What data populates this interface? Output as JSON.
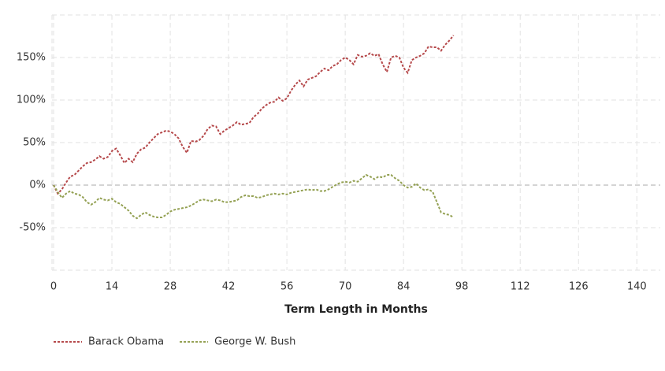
{
  "chart_data": {
    "type": "line",
    "x_label": "Term Length in Months",
    "x": [
      0,
      1,
      2,
      3,
      4,
      5,
      6,
      7,
      8,
      9,
      10,
      11,
      12,
      13,
      14,
      15,
      16,
      17,
      18,
      19,
      20,
      21,
      22,
      23,
      24,
      25,
      26,
      27,
      28,
      29,
      30,
      31,
      32,
      33,
      34,
      35,
      36,
      37,
      38,
      39,
      40,
      41,
      42,
      43,
      44,
      45,
      46,
      47,
      48,
      49,
      50,
      51,
      52,
      53,
      54,
      55,
      56,
      57,
      58,
      59,
      60,
      61,
      62,
      63,
      64,
      65,
      66,
      67,
      68,
      69,
      70,
      71,
      72,
      73,
      74,
      75,
      76,
      77,
      78,
      79,
      80,
      81,
      82,
      83,
      84,
      85,
      86,
      87,
      88,
      89,
      90,
      91,
      92,
      93,
      94,
      95,
      96
    ],
    "series": [
      {
        "name": "Barack Obama",
        "color": "#b5484a",
        "values": [
          0,
          -10,
          -5,
          3,
          10,
          12,
          17,
          22,
          26,
          27,
          30,
          34,
          31,
          33,
          40,
          43,
          35,
          26,
          31,
          27,
          37,
          42,
          44,
          50,
          55,
          60,
          62,
          64,
          63,
          60,
          55,
          45,
          38,
          52,
          51,
          53,
          58,
          66,
          70,
          69,
          60,
          64,
          67,
          70,
          74,
          71,
          72,
          73,
          80,
          84,
          90,
          94,
          97,
          98,
          103,
          99,
          102,
          111,
          118,
          123,
          116,
          124,
          126,
          128,
          133,
          137,
          135,
          140,
          142,
          147,
          150,
          147,
          142,
          153,
          151,
          152,
          155,
          152,
          154,
          142,
          133,
          150,
          152,
          150,
          138,
          132,
          147,
          150,
          152,
          155,
          163,
          162,
          162,
          158,
          165,
          170,
          176
        ]
      },
      {
        "name": "George W. Bush",
        "color": "#93a052",
        "values": [
          0,
          -8,
          -15,
          -10,
          -7,
          -10,
          -11,
          -14,
          -20,
          -23,
          -20,
          -15,
          -17,
          -18,
          -16,
          -20,
          -22,
          -26,
          -30,
          -36,
          -39,
          -35,
          -32,
          -35,
          -37,
          -38,
          -38,
          -35,
          -31,
          -29,
          -28,
          -27,
          -26,
          -24,
          -21,
          -18,
          -17,
          -18,
          -19,
          -17,
          -18,
          -20,
          -20,
          -19,
          -18,
          -14,
          -12,
          -13,
          -13,
          -15,
          -14,
          -12,
          -11,
          -10,
          -11,
          -10,
          -11,
          -9,
          -8,
          -7,
          -6,
          -5,
          -6,
          -5,
          -7,
          -7,
          -5,
          -2,
          1,
          3,
          4,
          3,
          5,
          4,
          8,
          12,
          10,
          7,
          10,
          9,
          12,
          12,
          8,
          5,
          0,
          -3,
          -2,
          2,
          -3,
          -6,
          -5,
          -8,
          -20,
          -32,
          -34,
          -35,
          -38
        ]
      }
    ],
    "xlim": [
      0,
      146
    ],
    "xticks": [
      0,
      14,
      28,
      42,
      56,
      70,
      84,
      98,
      112,
      126,
      140
    ],
    "ylim": [
      -100,
      200
    ],
    "yticks": [
      {
        "value": -50,
        "label": "-50%"
      },
      {
        "value": 0,
        "label": "0%"
      },
      {
        "value": 50,
        "label": "50%"
      },
      {
        "value": 100,
        "label": "100%"
      },
      {
        "value": 150,
        "label": "150%"
      }
    ],
    "grid": true,
    "legend": "bottom-left"
  }
}
